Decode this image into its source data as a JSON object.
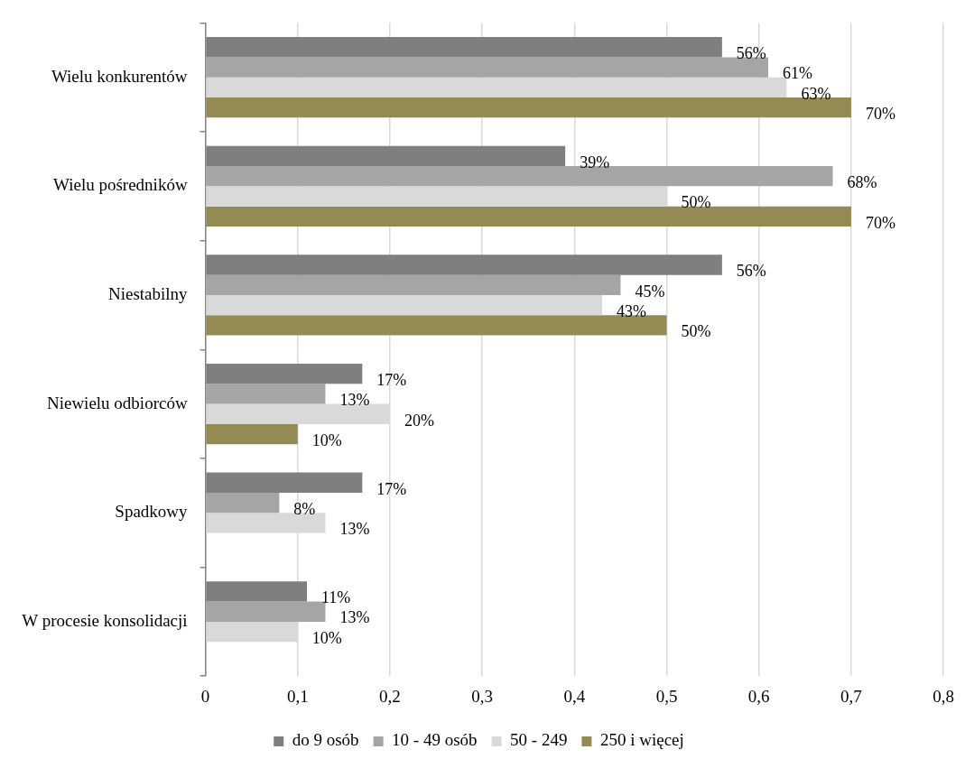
{
  "chart_data": {
    "type": "bar",
    "orientation": "horizontal",
    "categories": [
      "Wielu konkurentów",
      "Wielu pośredników",
      "Niestabilny",
      "Niewielu odbiorców",
      "Spadkowy",
      "W procesie konsolidacji"
    ],
    "series": [
      {
        "name": "do 9 osób",
        "color": "#7f7f7f",
        "values": [
          0.56,
          0.39,
          0.56,
          0.17,
          0.17,
          0.11
        ],
        "value_labels": [
          "56%",
          "39%",
          "56%",
          "17%",
          "17%",
          "11%"
        ]
      },
      {
        "name": "10 - 49 osób",
        "color": "#a5a5a5",
        "values": [
          0.61,
          0.68,
          0.45,
          0.13,
          0.08,
          0.13
        ],
        "value_labels": [
          "61%",
          "68%",
          "45%",
          "13%",
          "8%",
          "13%"
        ]
      },
      {
        "name": "50 - 249",
        "color": "#d9d9d9",
        "values": [
          0.63,
          0.5,
          0.43,
          0.2,
          0.13,
          0.1
        ],
        "value_labels": [
          "63%",
          "50%",
          "43%",
          "20%",
          "13%",
          "10%"
        ]
      },
      {
        "name": "250 i więcej",
        "color": "#948a54",
        "values": [
          0.7,
          0.7,
          0.5,
          0.1,
          null,
          null
        ],
        "value_labels": [
          "70%",
          "70%",
          "50%",
          "10%",
          null,
          null
        ]
      }
    ],
    "xlim": [
      0,
      0.8
    ],
    "xticks": [
      0,
      {
        "value": 0.1,
        "label": "0,1"
      },
      {
        "value": 0.2,
        "label": "0,2"
      },
      {
        "value": 0.3,
        "label": "0,3"
      },
      {
        "value": 0.4,
        "label": "0,4"
      },
      {
        "value": 0.5,
        "label": "0,5"
      },
      {
        "value": 0.6,
        "label": "0,6"
      },
      {
        "value": 0.7,
        "label": "0,7"
      },
      {
        "value": 0.8,
        "label": "0,8"
      }
    ],
    "grid": "x",
    "legend": "bottom"
  }
}
